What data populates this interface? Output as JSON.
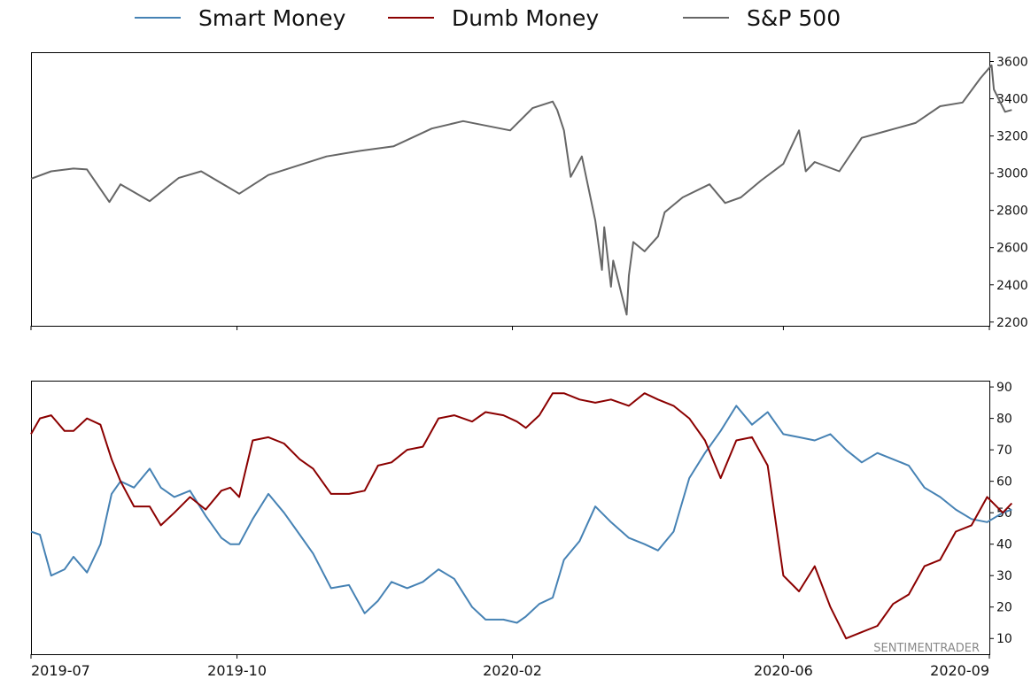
{
  "legend": {
    "smart": "Smart Money",
    "dumb": "Dumb Money",
    "sp500": "S&P 500"
  },
  "watermark": "SENTIMENTRADER",
  "colors": {
    "smart": "#4682b4",
    "dumb": "#8b0000",
    "sp500": "#666666"
  },
  "chart_data": [
    {
      "type": "line",
      "name": "top-panel",
      "ylim": [
        2180,
        3650
      ],
      "yticks": [
        "2200",
        "2400",
        "2600",
        "2800",
        "3000",
        "3200",
        "3400",
        "3600"
      ],
      "y_axis_side": "right",
      "grid": false,
      "series": [
        {
          "name": "S&P 500",
          "x": [
            "2019-07-01",
            "2019-07-10",
            "2019-07-20",
            "2019-07-26",
            "2019-08-05",
            "2019-08-10",
            "2019-08-23",
            "2019-09-05",
            "2019-09-15",
            "2019-10-02",
            "2019-10-15",
            "2019-10-28",
            "2019-11-10",
            "2019-11-25",
            "2019-12-10",
            "2019-12-27",
            "2020-01-10",
            "2020-01-31",
            "2020-02-10",
            "2020-02-19",
            "2020-02-21",
            "2020-02-24",
            "2020-02-27",
            "2020-03-03",
            "2020-03-09",
            "2020-03-12",
            "2020-03-13",
            "2020-03-16",
            "2020-03-17",
            "2020-03-23",
            "2020-03-24",
            "2020-03-26",
            "2020-03-31",
            "2020-04-06",
            "2020-04-09",
            "2020-04-17",
            "2020-04-29",
            "2020-05-06",
            "2020-05-13",
            "2020-05-22",
            "2020-06-01",
            "2020-06-08",
            "2020-06-11",
            "2020-06-15",
            "2020-06-26",
            "2020-07-06",
            "2020-07-15",
            "2020-07-30",
            "2020-08-10",
            "2020-08-20",
            "2020-08-28",
            "2020-09-02",
            "2020-09-03",
            "2020-09-08",
            "2020-09-11"
          ],
          "values": [
            2970,
            3010,
            3025,
            3020,
            2845,
            2940,
            2850,
            2975,
            3010,
            2890,
            2990,
            3040,
            3090,
            3120,
            3145,
            3240,
            3280,
            3230,
            3350,
            3385,
            3340,
            3230,
            2980,
            3090,
            2745,
            2480,
            2710,
            2390,
            2530,
            2240,
            2450,
            2630,
            2580,
            2660,
            2790,
            2870,
            2940,
            2840,
            2870,
            2960,
            3050,
            3230,
            3010,
            3060,
            3010,
            3190,
            3220,
            3270,
            3360,
            3380,
            3510,
            3580,
            3450,
            3330,
            3340
          ]
        }
      ]
    },
    {
      "type": "line",
      "name": "bottom-panel",
      "ylim": [
        5,
        92
      ],
      "yticks": [
        "10",
        "20",
        "30",
        "40",
        "50",
        "60",
        "70",
        "80",
        "90"
      ],
      "y_axis_side": "right",
      "grid": false,
      "xlim": [
        "2019-07",
        "2020-09"
      ],
      "xticks": [
        "2019-07",
        "2019-10",
        "2020-02",
        "2020-06",
        "2020-09"
      ],
      "series": [
        {
          "name": "Smart Money",
          "x": [
            "2019-07-01",
            "2019-07-05",
            "2019-07-10",
            "2019-07-16",
            "2019-07-20",
            "2019-07-26",
            "2019-08-01",
            "2019-08-06",
            "2019-08-10",
            "2019-08-16",
            "2019-08-23",
            "2019-08-28",
            "2019-09-03",
            "2019-09-10",
            "2019-09-17",
            "2019-09-24",
            "2019-09-28",
            "2019-10-02",
            "2019-10-08",
            "2019-10-15",
            "2019-10-22",
            "2019-10-29",
            "2019-11-04",
            "2019-11-12",
            "2019-11-20",
            "2019-11-27",
            "2019-12-03",
            "2019-12-09",
            "2019-12-16",
            "2019-12-23",
            "2019-12-30",
            "2020-01-06",
            "2020-01-14",
            "2020-01-20",
            "2020-01-28",
            "2020-02-03",
            "2020-02-07",
            "2020-02-13",
            "2020-02-19",
            "2020-02-24",
            "2020-03-02",
            "2020-03-09",
            "2020-03-16",
            "2020-03-24",
            "2020-03-31",
            "2020-04-06",
            "2020-04-13",
            "2020-04-20",
            "2020-04-27",
            "2020-05-04",
            "2020-05-11",
            "2020-05-18",
            "2020-05-25",
            "2020-06-01",
            "2020-06-08",
            "2020-06-15",
            "2020-06-22",
            "2020-06-29",
            "2020-07-06",
            "2020-07-13",
            "2020-07-20",
            "2020-07-27",
            "2020-08-03",
            "2020-08-10",
            "2020-08-17",
            "2020-08-24",
            "2020-08-31",
            "2020-09-07",
            "2020-09-11"
          ],
          "values": [
            44,
            43,
            30,
            32,
            36,
            31,
            40,
            56,
            60,
            58,
            64,
            58,
            55,
            57,
            49,
            42,
            40,
            40,
            48,
            56,
            50,
            43,
            37,
            26,
            27,
            18,
            22,
            28,
            26,
            28,
            32,
            29,
            20,
            16,
            16,
            15,
            17,
            21,
            23,
            35,
            41,
            52,
            47,
            42,
            40,
            38,
            44,
            61,
            69,
            76,
            84,
            78,
            82,
            75,
            74,
            73,
            75,
            70,
            66,
            69,
            67,
            65,
            58,
            55,
            51,
            48,
            47,
            50,
            51
          ]
        },
        {
          "name": "Dumb Money",
          "x": [
            "2019-07-01",
            "2019-07-05",
            "2019-07-10",
            "2019-07-16",
            "2019-07-20",
            "2019-07-26",
            "2019-08-01",
            "2019-08-06",
            "2019-08-10",
            "2019-08-16",
            "2019-08-23",
            "2019-08-28",
            "2019-09-03",
            "2019-09-10",
            "2019-09-17",
            "2019-09-24",
            "2019-09-28",
            "2019-10-02",
            "2019-10-08",
            "2019-10-15",
            "2019-10-22",
            "2019-10-29",
            "2019-11-04",
            "2019-11-12",
            "2019-11-20",
            "2019-11-27",
            "2019-12-03",
            "2019-12-09",
            "2019-12-16",
            "2019-12-23",
            "2019-12-30",
            "2020-01-06",
            "2020-01-14",
            "2020-01-20",
            "2020-01-28",
            "2020-02-03",
            "2020-02-07",
            "2020-02-13",
            "2020-02-19",
            "2020-02-24",
            "2020-03-02",
            "2020-03-09",
            "2020-03-16",
            "2020-03-24",
            "2020-03-31",
            "2020-04-06",
            "2020-04-13",
            "2020-04-20",
            "2020-04-27",
            "2020-05-04",
            "2020-05-11",
            "2020-05-18",
            "2020-05-25",
            "2020-06-01",
            "2020-06-08",
            "2020-06-15",
            "2020-06-22",
            "2020-06-29",
            "2020-07-06",
            "2020-07-13",
            "2020-07-20",
            "2020-07-27",
            "2020-08-03",
            "2020-08-10",
            "2020-08-17",
            "2020-08-24",
            "2020-08-31",
            "2020-09-07",
            "2020-09-11"
          ],
          "values": [
            75,
            80,
            81,
            76,
            76,
            80,
            78,
            67,
            60,
            52,
            52,
            46,
            50,
            55,
            51,
            57,
            58,
            55,
            73,
            74,
            72,
            67,
            64,
            56,
            56,
            57,
            65,
            66,
            70,
            71,
            80,
            81,
            79,
            82,
            81,
            79,
            77,
            81,
            88,
            88,
            86,
            85,
            86,
            84,
            88,
            86,
            84,
            80,
            73,
            61,
            73,
            74,
            65,
            30,
            25,
            33,
            20,
            10,
            12,
            14,
            21,
            24,
            33,
            35,
            44,
            46,
            55,
            50,
            53
          ]
        }
      ]
    }
  ]
}
